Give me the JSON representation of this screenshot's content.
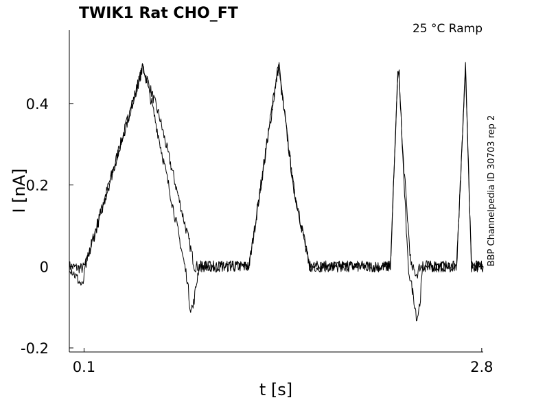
{
  "chart_data": {
    "type": "line",
    "title": "TWIK1  Rat  CHO_FT",
    "annotation": "25 °C  Ramp",
    "side_label": "BBP Channelpedia ID 30703 rep 2",
    "xlabel": "t [s]",
    "ylabel": "I [nA]",
    "xlim": [
      0.0,
      2.81
    ],
    "ylim": [
      -0.21,
      0.58
    ],
    "x_ticks": [
      0.1,
      2.8
    ],
    "x_tick_labels": [
      "0.1",
      "2.8"
    ],
    "y_ticks": [
      -0.2,
      0,
      0.2,
      0.4
    ],
    "y_tick_labels": [
      "-0.2",
      "0",
      "0.2",
      "0.4"
    ],
    "grid": false,
    "line_color": "#000000",
    "series": [
      {
        "x": [
          0.0,
          0.09,
          0.11,
          0.5,
          0.61,
          0.82,
          0.85,
          0.87,
          0.9,
          0.91,
          1.22,
          1.42,
          1.52,
          1.63,
          1.69,
          2.0,
          2.18,
          2.23,
          2.24,
          2.26,
          2.32,
          2.36,
          2.38,
          2.5,
          2.63,
          2.69,
          2.73,
          2.81
        ],
        "y": [
          0.0,
          -0.005,
          0.005,
          0.49,
          0.37,
          0.05,
          0.0,
          0.0,
          0.0,
          0.0,
          0.0,
          0.49,
          0.2,
          0.0,
          0.0,
          0.0,
          0.0,
          0.47,
          0.47,
          0.3,
          0.0,
          -0.02,
          0.0,
          0.0,
          0.0,
          0.49,
          0.0,
          0.0
        ]
      },
      {
        "x": [
          0.0,
          0.09,
          0.11,
          0.5,
          0.56,
          0.73,
          0.8,
          0.82,
          0.84,
          0.88,
          0.91,
          1.22,
          1.42,
          1.52,
          1.63,
          1.69,
          2.0,
          2.18,
          2.23,
          2.24,
          2.26,
          2.3,
          2.34,
          2.36,
          2.38,
          2.4,
          2.5,
          2.63,
          2.69,
          2.73,
          2.81
        ],
        "y": [
          0.0,
          -0.05,
          0.0,
          0.49,
          0.4,
          0.1,
          -0.03,
          -0.1,
          -0.1,
          0.0,
          0.0,
          0.0,
          0.5,
          0.2,
          0.0,
          0.0,
          0.0,
          0.0,
          0.47,
          0.47,
          0.3,
          0.0,
          -0.08,
          -0.13,
          -0.09,
          0.0,
          0.0,
          0.0,
          0.49,
          0.0,
          0.0
        ]
      }
    ]
  }
}
